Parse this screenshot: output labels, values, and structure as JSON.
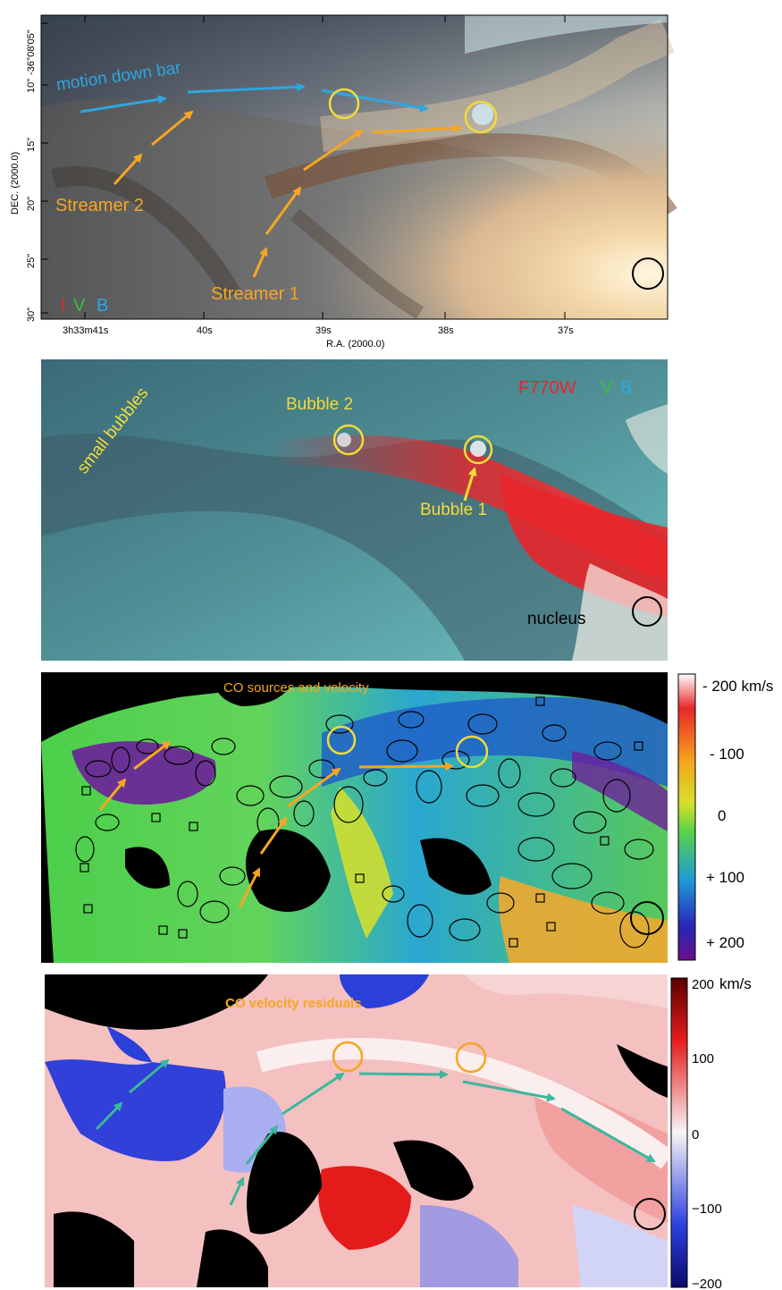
{
  "panel1": {
    "dec_ticks": [
      "-36°08'05\"",
      "10\"",
      "15\"",
      "20\"",
      "25\"",
      "30\""
    ],
    "ra_ticks": [
      "3h33m41s",
      "40s",
      "39s",
      "38s",
      "37s"
    ],
    "ra_label": "R.A. (2000.0)",
    "dec_label": "DEC. (2000.0)",
    "label_motion": "motion down bar",
    "label_streamer2": "Streamer 2",
    "label_streamer1": "Streamer 1",
    "band_i": "I",
    "band_v": "V",
    "band_b": "B"
  },
  "panel2": {
    "label_small_bubbles": "small bubbles",
    "label_bubble2": "Bubble  2",
    "label_bubble1": "Bubble  1",
    "label_nucleus": "nucleus",
    "band_f770w": "F770W",
    "band_v": "V",
    "band_b": "B"
  },
  "panel3": {
    "title": "CO sources and velocity",
    "colorbar_ticks": [
      "- 200 km/s",
      "- 100",
      "0",
      "+ 100",
      "+ 200"
    ]
  },
  "panel4": {
    "title": "CO velocity residuals",
    "colorbar_ticks": [
      "200",
      "100",
      "0",
      "−100",
      "−200"
    ],
    "colorbar_unit": "km/s"
  },
  "colors": {
    "blue_arrow": "#2ea6e0",
    "orange_arrow": "#f5a623",
    "yellow_circle": "#f2dc37",
    "teal_arrow": "#3bb79c",
    "red_band": "#e8262a",
    "green_band": "#3bbf3b",
    "blue_band": "#2ea6e0"
  }
}
